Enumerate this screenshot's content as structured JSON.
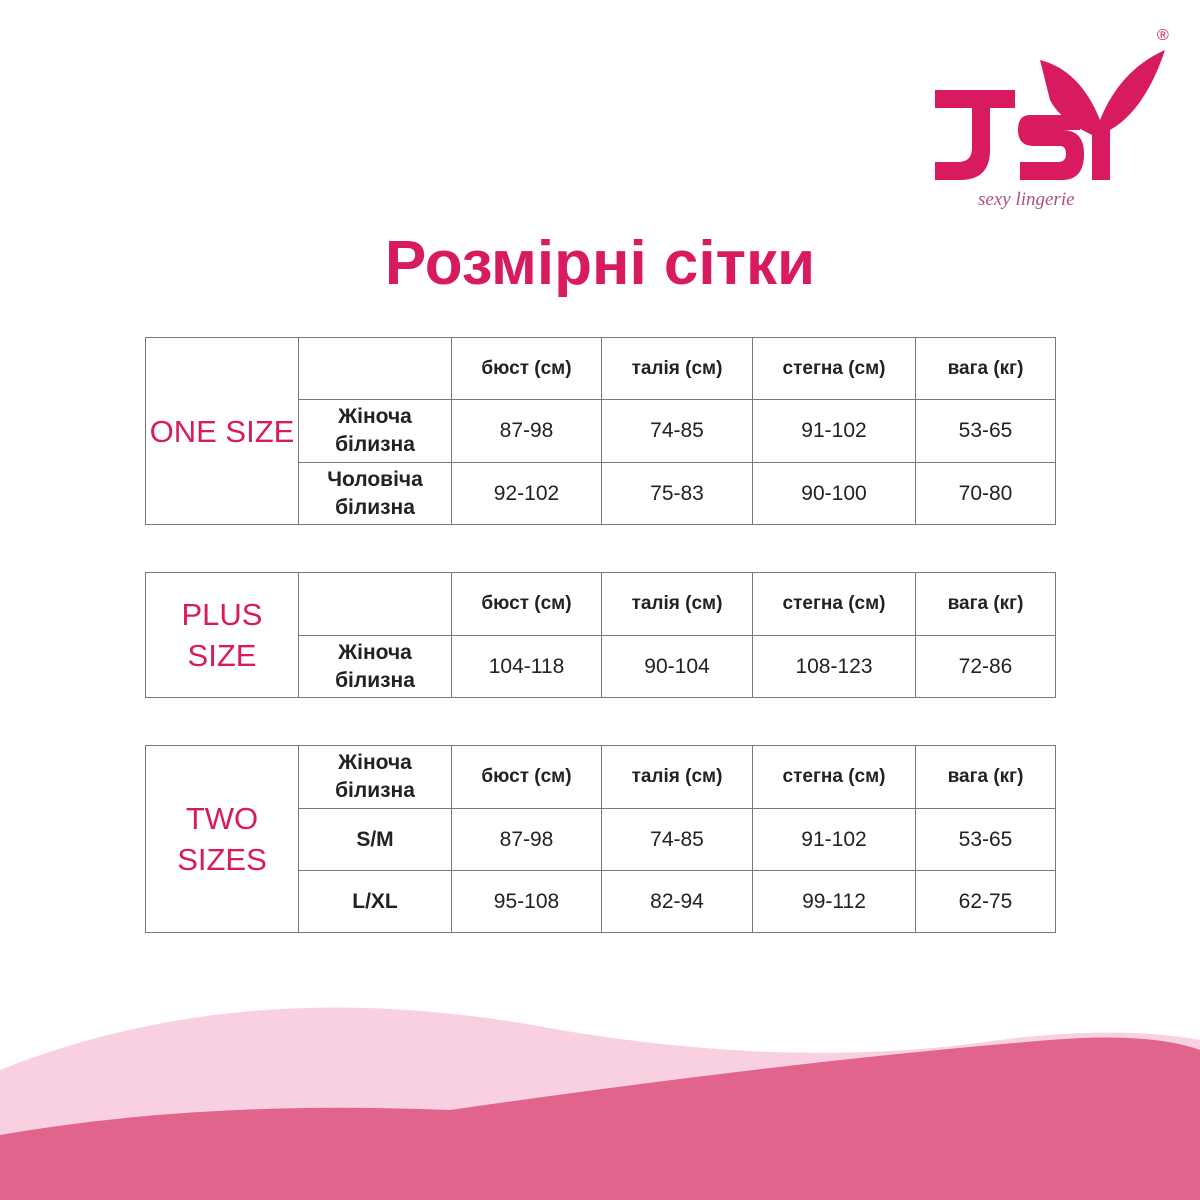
{
  "logo": {
    "text": "JSY",
    "tagline": "sexy lingerie",
    "mark": "®",
    "color": "#d81b60"
  },
  "title": "Розмірні сітки",
  "columns": [
    "бюст (см)",
    "талія (см)",
    "стегна (см)",
    "вага (кг)"
  ],
  "tables": [
    {
      "group": "ONE SIZE",
      "corner": "",
      "rows": [
        {
          "label": "Жіноча білизна",
          "values": [
            "87-98",
            "74-85",
            "91-102",
            "53-65"
          ]
        },
        {
          "label": "Чоловіча білизна",
          "values": [
            "92-102",
            "75-83",
            "90-100",
            "70-80"
          ]
        }
      ]
    },
    {
      "group": "PLUS SIZE",
      "corner": "",
      "rows": [
        {
          "label": "Жіноча білизна",
          "values": [
            "104-118",
            "90-104",
            "108-123",
            "72-86"
          ]
        }
      ]
    },
    {
      "group": "TWO SIZES",
      "corner": "Жіноча білизна",
      "rows": [
        {
          "label": "S/M",
          "values": [
            "87-98",
            "74-85",
            "91-102",
            "53-65"
          ]
        },
        {
          "label": "L/XL",
          "values": [
            "95-108",
            "82-94",
            "99-112",
            "62-75"
          ]
        }
      ]
    }
  ],
  "colors": {
    "accent": "#d81b60",
    "wave_light": "#f9d0e2",
    "wave_dark": "#e0648c"
  }
}
